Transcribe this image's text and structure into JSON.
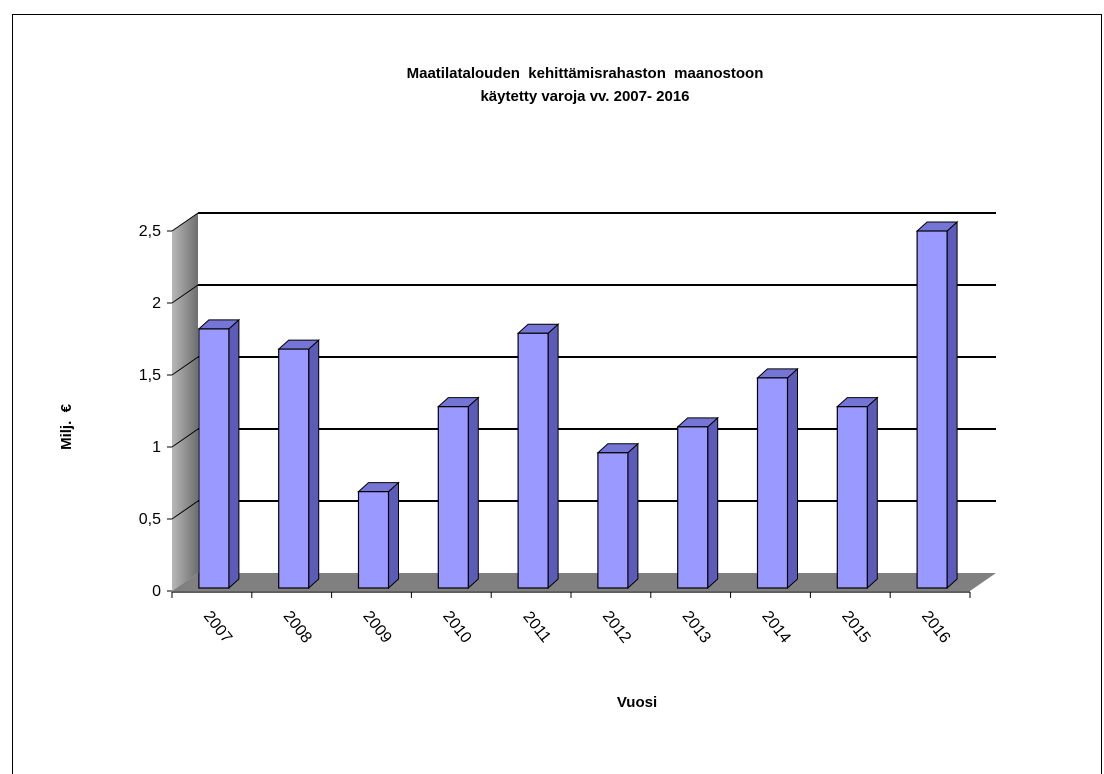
{
  "chart_data": {
    "type": "bar",
    "title": "Maatilatalouden  kehittämisrahaston  maanostoon",
    "subtitle": "käytetty varoja vv. 2007- 2016",
    "xlabel": "Vuosi",
    "ylabel": "Milj.  €",
    "categories": [
      "2007",
      "2008",
      "2009",
      "2010",
      "2011",
      "2012",
      "2013",
      "2014",
      "2015",
      "2016"
    ],
    "values": [
      1.82,
      1.68,
      0.69,
      1.28,
      1.79,
      0.96,
      1.14,
      1.48,
      1.28,
      2.5
    ],
    "ylim": [
      0,
      2.5
    ],
    "yticks": [
      "0",
      "0,5",
      "1",
      "1,5",
      "2",
      "2,5"
    ],
    "grid": true,
    "legend": "none",
    "colors": {
      "bar_front": "#9999ff",
      "bar_side": "#5c5cb8",
      "bar_top": "#7575d6",
      "wall": "#c0c0c0",
      "floor": "#808080",
      "outline": "#000000"
    }
  }
}
